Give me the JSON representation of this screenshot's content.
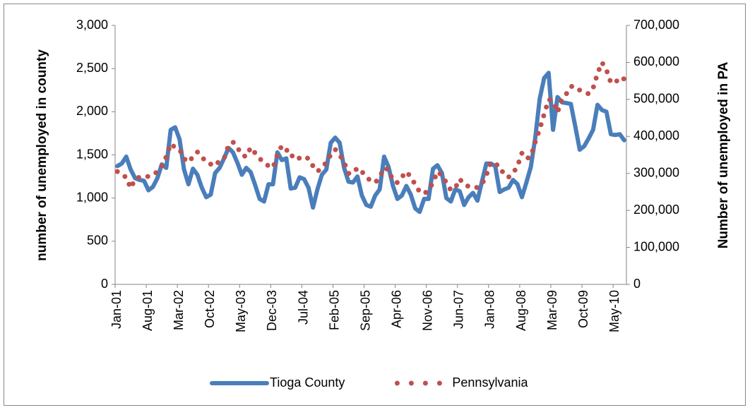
{
  "chart_data": {
    "type": "line",
    "y_label": "number of unemployed in county",
    "y2_label": "Number of unemployed in PA",
    "categories": [
      "Jan-01",
      null,
      null,
      null,
      null,
      null,
      null,
      "Aug-01",
      null,
      null,
      null,
      null,
      null,
      null,
      "Mar-02",
      null,
      null,
      null,
      null,
      null,
      null,
      "Oct-02",
      null,
      null,
      null,
      null,
      null,
      null,
      "May-03",
      null,
      null,
      null,
      null,
      null,
      null,
      "Dec-03",
      null,
      null,
      null,
      null,
      null,
      null,
      "Jul-04",
      null,
      null,
      null,
      null,
      null,
      null,
      "Feb-05",
      null,
      null,
      null,
      null,
      null,
      null,
      "Sep-05",
      null,
      null,
      null,
      null,
      null,
      null,
      "Apr-06",
      null,
      null,
      null,
      null,
      null,
      null,
      "Nov-06",
      null,
      null,
      null,
      null,
      null,
      null,
      "Jun-07",
      null,
      null,
      null,
      null,
      null,
      null,
      "Jan-08",
      null,
      null,
      null,
      null,
      null,
      null,
      "Aug-08",
      null,
      null,
      null,
      null,
      null,
      null,
      "Mar-09",
      null,
      null,
      null,
      null,
      null,
      null,
      "Oct-09",
      null,
      null,
      null,
      null,
      null,
      null,
      "May-10",
      null,
      null
    ],
    "series": [
      {
        "name": "Tioga County",
        "color": "#4a7ebb",
        "style": "solid",
        "values": [
          1370,
          1400,
          1480,
          1330,
          1230,
          1210,
          1200,
          1090,
          1130,
          1230,
          1390,
          1350,
          1790,
          1820,
          1680,
          1330,
          1160,
          1340,
          1270,
          1120,
          1010,
          1040,
          1290,
          1350,
          1460,
          1580,
          1530,
          1410,
          1270,
          1350,
          1300,
          1150,
          990,
          960,
          1160,
          1160,
          1530,
          1440,
          1460,
          1110,
          1120,
          1240,
          1220,
          1120,
          890,
          1100,
          1270,
          1330,
          1640,
          1700,
          1640,
          1350,
          1190,
          1180,
          1250,
          1030,
          920,
          900,
          1030,
          1100,
          1480,
          1360,
          1140,
          990,
          1030,
          1140,
          1040,
          880,
          840,
          990,
          990,
          1340,
          1380,
          1290,
          1000,
          960,
          1100,
          1080,
          920,
          1010,
          1060,
          970,
          1190,
          1400,
          1400,
          1370,
          1070,
          1100,
          1120,
          1210,
          1160,
          1010,
          1180,
          1360,
          1700,
          2150,
          2390,
          2450,
          1790,
          2170,
          2110,
          2100,
          2090,
          1830,
          1560,
          1600,
          1690,
          1790,
          2080,
          2020,
          2000,
          1740,
          1730,
          1740,
          1670
        ]
      },
      {
        "name": "Pennsylvania",
        "color": "#c0504d",
        "style": "dotted",
        "axis": "y2",
        "values": [
          305000,
          295000,
          290000,
          260000,
          285000,
          290000,
          290000,
          292000,
          295000,
          305000,
          320000,
          345000,
          380000,
          370000,
          365000,
          340000,
          330000,
          345000,
          358000,
          345000,
          330000,
          325000,
          320000,
          335000,
          340000,
          375000,
          385000,
          370000,
          350000,
          345000,
          370000,
          355000,
          340000,
          330000,
          320000,
          315000,
          350000,
          375000,
          365000,
          345000,
          352000,
          340000,
          345000,
          340000,
          320000,
          305000,
          315000,
          330000,
          350000,
          365000,
          350000,
          330000,
          300000,
          300000,
          315000,
          305000,
          290000,
          280000,
          275000,
          290000,
          315000,
          310000,
          280000,
          275000,
          290000,
          305000,
          290000,
          270000,
          250000,
          245000,
          255000,
          275000,
          305000,
          295000,
          275000,
          255000,
          260000,
          285000,
          270000,
          265000,
          262000,
          262000,
          270000,
          295000,
          330000,
          325000,
          320000,
          295000,
          290000,
          300000,
          320000,
          355000,
          340000,
          345000,
          385000,
          420000,
          460000,
          500000,
          495000,
          465000,
          500000,
          515000,
          535000,
          535000,
          525000,
          520000,
          515000,
          530000,
          570000,
          600000,
          580000,
          545000,
          545000,
          560000,
          555000
        ]
      }
    ],
    "ylim": [
      0,
      3000
    ],
    "yticks": [
      0,
      500,
      {
        "value": 1000,
        "label": "1,000"
      },
      {
        "value": 1500,
        "label": "1,500"
      },
      {
        "value": 2000,
        "label": "2,000"
      },
      {
        "value": 2500,
        "label": "2,500"
      },
      {
        "value": 3000,
        "label": "3,000"
      }
    ],
    "y2lim": [
      0,
      700000
    ],
    "y2ticks": [
      0,
      {
        "value": 100000,
        "label": "100,000"
      },
      {
        "value": 200000,
        "label": "200,000"
      },
      {
        "value": 300000,
        "label": "300,000"
      },
      {
        "value": 400000,
        "label": "400,000"
      },
      {
        "value": 500000,
        "label": "500,000"
      },
      {
        "value": 600000,
        "label": "600,000"
      },
      {
        "value": 700000,
        "label": "700,000"
      }
    ],
    "legend": "bottom"
  }
}
